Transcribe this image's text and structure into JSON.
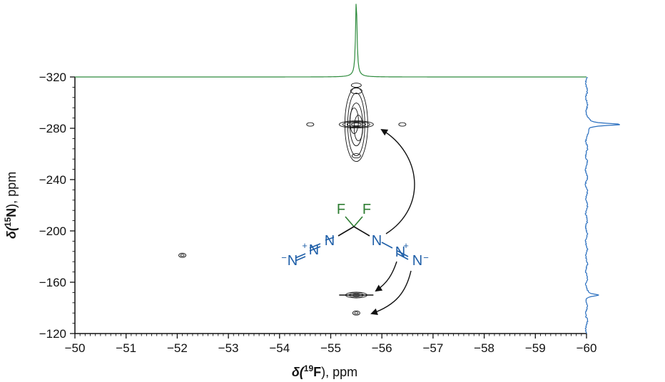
{
  "chart_data": {
    "type": "heatmap",
    "subtype": "2D NMR correlation contour plot with 1D projections",
    "xlabel": {
      "prefix": "δ(",
      "sup": "19",
      "element": "F",
      "suffix": "), ppm"
    },
    "ylabel": {
      "prefix": "δ(",
      "sup": "15",
      "element": "N",
      "suffix": "), ppm"
    },
    "xlim": [
      -50,
      -60
    ],
    "ylim": [
      -120,
      -320
    ],
    "x_ticks": [
      "−50",
      "−51",
      "−52",
      "−53",
      "−54",
      "−55",
      "−56",
      "−57",
      "−58",
      "−59",
      "−60"
    ],
    "x_tick_values": [
      -50,
      -51,
      -52,
      -53,
      -54,
      -55,
      -56,
      -57,
      -58,
      -59,
      -60
    ],
    "y_ticks": [
      "−120",
      "−160",
      "−200",
      "−240",
      "−280",
      "−320"
    ],
    "y_tick_values": [
      -120,
      -160,
      -200,
      -240,
      -280,
      -320
    ],
    "cross_peaks": [
      {
        "x": -55.5,
        "y": -283,
        "intensity": "strong"
      },
      {
        "x": -55.5,
        "y": -150,
        "intensity": "medium"
      },
      {
        "x": -55.5,
        "y": -136,
        "intensity": "weak"
      },
      {
        "x": -54.6,
        "y": -283,
        "intensity": "satellite"
      },
      {
        "x": -56.4,
        "y": -283,
        "intensity": "satellite"
      },
      {
        "x": -52.1,
        "y": -181,
        "intensity": "weak"
      }
    ],
    "top_projection": {
      "nucleus": "19F",
      "peak_x": -55.5,
      "color": "#2e8b3d"
    },
    "right_projection": {
      "nucleus": "15N",
      "peaks_y": [
        -283,
        -150
      ],
      "color": "#2a6fbf"
    },
    "molecule": {
      "atoms": [
        "F",
        "F",
        "N",
        "N",
        "N",
        "N",
        "N",
        "N"
      ],
      "charges": [
        "+",
        "−",
        "+",
        "−"
      ]
    },
    "grid": false
  }
}
